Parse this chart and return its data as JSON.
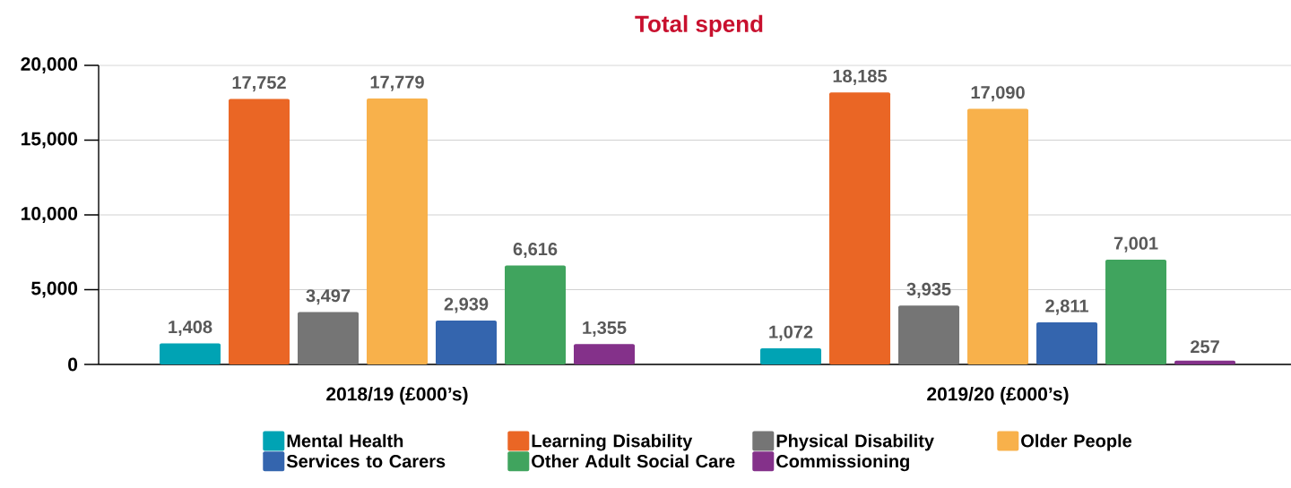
{
  "chart_data": {
    "type": "bar",
    "title": "Total spend",
    "categories": [
      "2018/19 (£000’s)",
      "2019/20 (£000’s)"
    ],
    "series": [
      {
        "name": "Mental Health",
        "color": "#00a3b4",
        "values": [
          1408,
          1072
        ],
        "value_labels": [
          "1,408",
          "1,072"
        ]
      },
      {
        "name": "Learning Disability",
        "color": "#ea6625",
        "values": [
          17752,
          18185
        ],
        "value_labels": [
          "17,752",
          "18,185"
        ]
      },
      {
        "name": "Physical Disability",
        "color": "#757575",
        "values": [
          3497,
          3935
        ],
        "value_labels": [
          "3,497",
          "3,935"
        ]
      },
      {
        "name": "Older People",
        "color": "#f8b14b",
        "values": [
          17779,
          17090
        ],
        "value_labels": [
          "17,779",
          "17,090"
        ]
      },
      {
        "name": "Services to Carers",
        "color": "#3465ae",
        "values": [
          2939,
          2811
        ],
        "value_labels": [
          "2,939",
          "2,811"
        ]
      },
      {
        "name": "Other Adult Social Care",
        "color": "#40a45e",
        "values": [
          6616,
          7001
        ],
        "value_labels": [
          "6,616",
          "7,001"
        ]
      },
      {
        "name": "Commissioning",
        "color": "#84318a",
        "values": [
          1355,
          257
        ],
        "value_labels": [
          "1,355",
          "257"
        ]
      }
    ],
    "ylim": [
      0,
      20000
    ],
    "yticks": [
      {
        "value": 0,
        "label": "0"
      },
      {
        "value": 5000,
        "label": "5,000"
      },
      {
        "value": 10000,
        "label": "10,000"
      },
      {
        "value": 15000,
        "label": "15,000"
      },
      {
        "value": 20000,
        "label": "20,000"
      }
    ],
    "grid": "y",
    "legend": "bottom"
  }
}
